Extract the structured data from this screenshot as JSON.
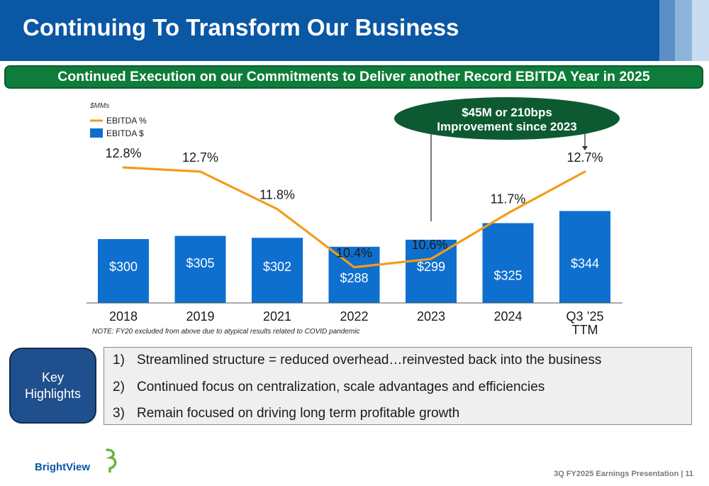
{
  "header": {
    "title": "Continuing To Transform Our Business"
  },
  "banner": {
    "text": "Continued Execution on our Commitments to Deliver another Record EBITDA Year in 2025"
  },
  "chart_data": {
    "type": "bar",
    "units_label": "$MMs",
    "categories": [
      "2018",
      "2019",
      "2021",
      "2022",
      "2023",
      "2024",
      "Q3 ’25|TTM"
    ],
    "series": [
      {
        "name": "EBITDA $",
        "type": "bar",
        "color": "#0e6fcf",
        "values": [
          300,
          305,
          302,
          288,
          299,
          325,
          344
        ],
        "labels": [
          "$300",
          "$305",
          "$302",
          "$288",
          "$299",
          "$325",
          "$344"
        ]
      },
      {
        "name": "EBITDA %",
        "type": "line",
        "color": "#f39c1a",
        "values": [
          12.8,
          12.7,
          11.8,
          10.4,
          10.6,
          11.7,
          12.7
        ],
        "labels": [
          "12.8%",
          "12.7%",
          "11.8%",
          "10.4%",
          "10.6%",
          "11.7%",
          "12.7%"
        ]
      }
    ],
    "legend": {
      "placement": "top-left"
    },
    "callout": {
      "line1": "$45M or 210bps",
      "line2": "Improvement since 2023"
    },
    "grid": false
  },
  "note": "NOTE: FY20 excluded from above due to atypical results related to COVID pandemic",
  "key_highlights": {
    "label": "Key Highlights",
    "items": [
      {
        "num": "1)",
        "text": "Streamlined structure = reduced overhead…reinvested back into the business"
      },
      {
        "num": "2)",
        "text": "Continued focus on centralization, scale advantages and efficiencies"
      },
      {
        "num": "3)",
        "text": "Remain focused on driving long term profitable growth"
      }
    ]
  },
  "logo": {
    "text": "BrightView",
    "icon": "brightview-leaf-icon"
  },
  "footer": {
    "text": "3Q FY2025 Earnings Presentation | 11"
  },
  "colors": {
    "header_blue": "#0a57a4",
    "banner_green": "#0e7c3a",
    "callout_green": "#0d5a32",
    "bar_blue": "#0e6fcf",
    "line_orange": "#f39c1a",
    "key_box_blue": "#1f4f8c"
  }
}
